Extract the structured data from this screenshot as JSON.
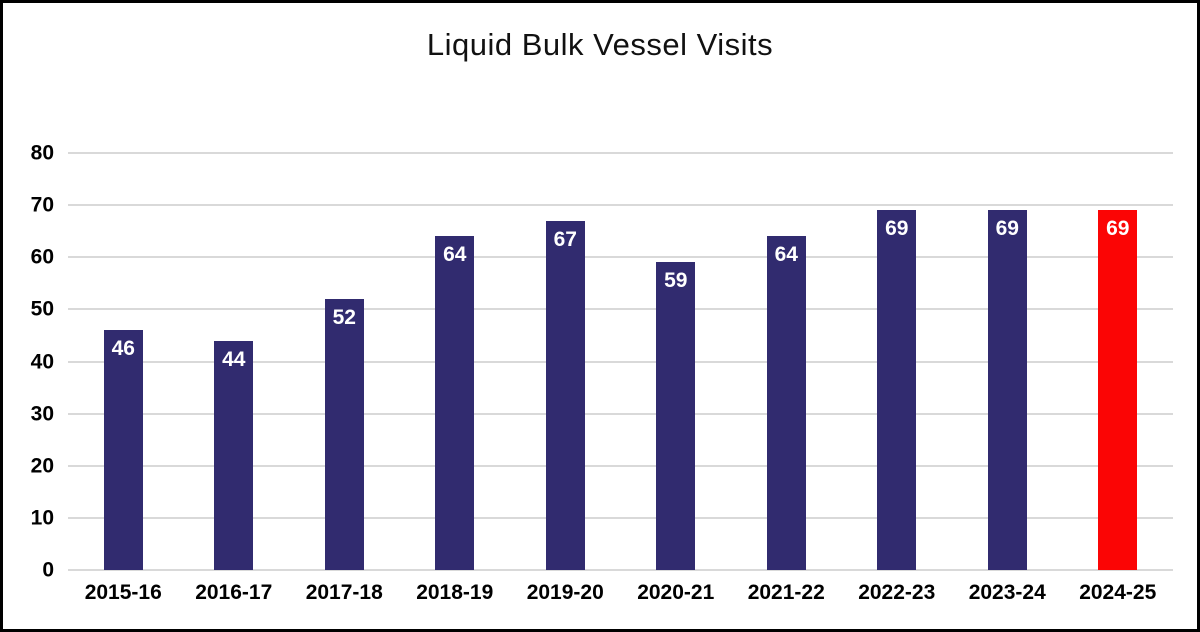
{
  "chart_data": {
    "type": "bar",
    "title": "Liquid Bulk Vessel Visits",
    "categories": [
      "2015-16",
      "2016-17",
      "2017-18",
      "2018-19",
      "2019-20",
      "2020-21",
      "2021-22",
      "2022-23",
      "2023-24",
      "2024-25"
    ],
    "values": [
      46,
      44,
      52,
      64,
      67,
      59,
      64,
      69,
      69,
      69
    ],
    "xlabel": "",
    "ylabel": "",
    "ylim": [
      0,
      80
    ],
    "yticks": [
      0,
      10,
      20,
      30,
      40,
      50,
      60,
      70,
      80
    ],
    "grid": true,
    "legend_position": "none",
    "bar_color": "#312b6f",
    "highlight_index": 9,
    "highlight_color": "#fb0505",
    "value_label_color": "#ffffff",
    "gridline_color": "#d9d9d9",
    "axis_label_color": "#000000",
    "frame_border_color": "#000000",
    "background_color": "#ffffff"
  }
}
